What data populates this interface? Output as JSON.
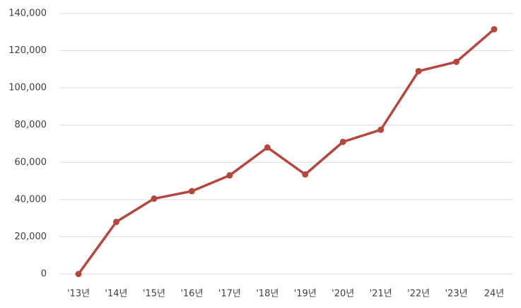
{
  "chart_data": {
    "type": "line",
    "categories": [
      "'13년",
      "'14년",
      "'15년",
      "'16년",
      "'17년",
      "'18년",
      "'19년",
      "'20년",
      "'21년",
      "'22년",
      "'23년",
      "24년"
    ],
    "values": [
      0,
      28000,
      40500,
      44500,
      53000,
      68000,
      53500,
      71000,
      77500,
      109000,
      114000,
      131500
    ],
    "color": "#b5473f",
    "ylim": [
      0,
      140000
    ],
    "yticks": [
      0,
      {
        "value": 20000,
        "label": "20,000"
      },
      {
        "value": 40000,
        "label": "40,000"
      },
      {
        "value": 60000,
        "label": "60,000"
      },
      {
        "value": 80000,
        "label": "80,000"
      },
      {
        "value": 100000,
        "label": "100,000"
      },
      {
        "value": 120000,
        "label": "120,000"
      },
      {
        "value": 140000,
        "label": "140,000"
      }
    ],
    "grid": true
  }
}
